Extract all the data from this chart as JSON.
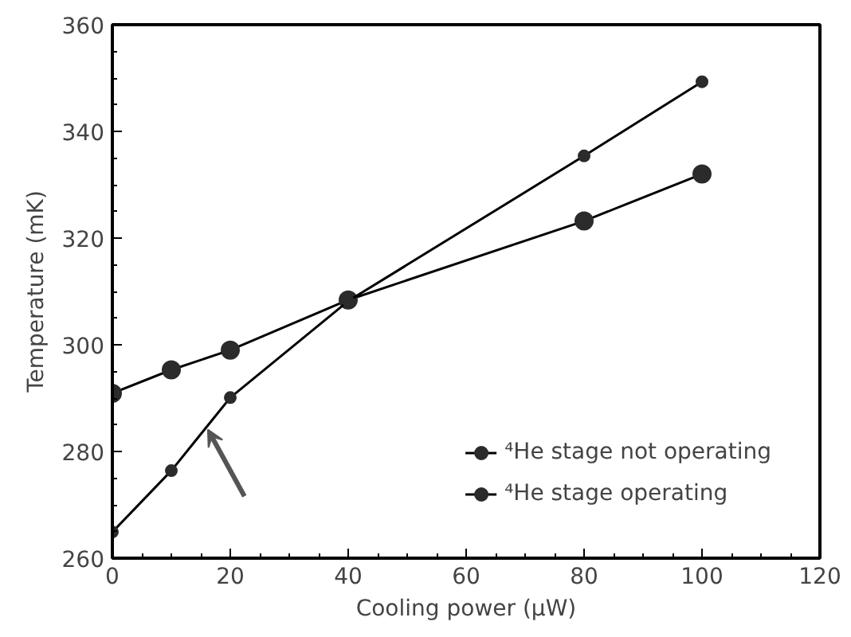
{
  "chart_data": {
    "type": "line",
    "xlabel": "Cooling power (μW)",
    "ylabel": "Temperature (mK)",
    "x": [
      0,
      10,
      20,
      40,
      80,
      100
    ],
    "series": [
      {
        "name": "⁴He stage not operating",
        "color": "#2b2b2b",
        "values": [
          290.9,
          295.3,
          299.0,
          308.4,
          323.2,
          332.0
        ]
      },
      {
        "name": "⁴He stage operating",
        "color": "#2b2b2b",
        "values": [
          264.9,
          276.4,
          290.1,
          308.2,
          335.4,
          349.3
        ]
      }
    ],
    "xlim": [
      0,
      120
    ],
    "xticks": [
      0,
      20,
      40,
      60,
      80,
      100,
      120
    ],
    "ylim": [
      260,
      360
    ],
    "yticks": [
      260,
      280,
      300,
      320,
      340,
      360
    ],
    "grid": false,
    "legend": "bottom right",
    "marker": "circle",
    "line_style": "solid"
  }
}
